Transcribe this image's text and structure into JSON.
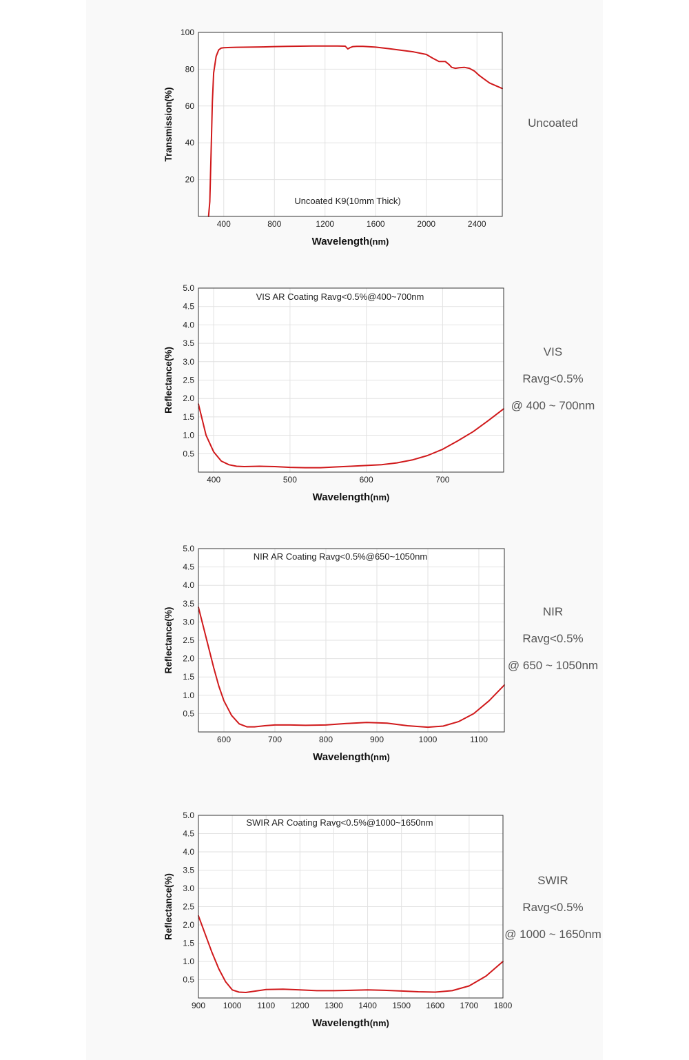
{
  "chart_data": [
    {
      "type": "line",
      "title": "Uncoated K9(10mm Thick)",
      "xlabel": "Wavelength",
      "xlabel_unit": "(nm)",
      "ylabel": "Transmission(%)",
      "xlim": [
        200,
        2600
      ],
      "ylim": [
        0,
        100
      ],
      "xticks": [
        400,
        800,
        1200,
        1600,
        2000,
        2400
      ],
      "yticks": [
        20,
        40,
        60,
        80,
        100
      ],
      "grid": true,
      "line_color": "#d0191b",
      "side_labels": [
        "Uncoated"
      ],
      "series": [
        {
          "x": [
            280,
            290,
            300,
            310,
            320,
            340,
            360,
            380,
            400,
            450,
            500,
            600,
            700,
            800,
            900,
            1000,
            1100,
            1200,
            1300,
            1360,
            1380,
            1400,
            1420,
            1450,
            1500,
            1600,
            1700,
            1800,
            1900,
            2000,
            2050,
            2100,
            2150,
            2180,
            2200,
            2230,
            2260,
            2300,
            2340,
            2380,
            2420,
            2450,
            2500,
            2550,
            2600
          ],
          "y": [
            0,
            8,
            35,
            62,
            78,
            87,
            90.5,
            91.5,
            91.7,
            91.8,
            91.9,
            92.0,
            92.1,
            92.3,
            92.4,
            92.5,
            92.6,
            92.6,
            92.6,
            92.5,
            91.0,
            91.8,
            92.3,
            92.4,
            92.4,
            92.0,
            91.2,
            90.3,
            89.4,
            88.0,
            86.0,
            84.2,
            84.2,
            82.5,
            81.0,
            80.5,
            80.8,
            81.0,
            80.5,
            79.0,
            76.5,
            75.0,
            72.5,
            71.0,
            69.5
          ]
        }
      ]
    },
    {
      "type": "line",
      "title": "VIS AR Coating Ravg<0.5%@400~700nm",
      "xlabel": "Wavelength",
      "xlabel_unit": "(nm)",
      "ylabel": "Reflectance(%)",
      "xlim": [
        380,
        780
      ],
      "ylim": [
        0,
        5
      ],
      "xticks": [
        400,
        500,
        600,
        700
      ],
      "yticks": [
        0.5,
        1.0,
        1.5,
        2.0,
        2.5,
        3.0,
        3.5,
        4.0,
        4.5,
        5.0
      ],
      "grid": true,
      "line_color": "#d0191b",
      "side_labels": [
        "VIS",
        "Ravg<0.5%",
        "@ 400 ~ 700nm"
      ],
      "series": [
        {
          "x": [
            380,
            390,
            400,
            410,
            420,
            430,
            440,
            460,
            480,
            500,
            520,
            540,
            560,
            580,
            600,
            620,
            640,
            660,
            680,
            700,
            720,
            740,
            760,
            780
          ],
          "y": [
            1.85,
            1.0,
            0.55,
            0.3,
            0.2,
            0.16,
            0.15,
            0.16,
            0.15,
            0.13,
            0.12,
            0.12,
            0.14,
            0.16,
            0.18,
            0.2,
            0.25,
            0.33,
            0.45,
            0.62,
            0.85,
            1.1,
            1.4,
            1.72
          ]
        }
      ]
    },
    {
      "type": "line",
      "title": "NIR AR Coating Ravg<0.5%@650~1050nm",
      "xlabel": "Wavelength",
      "xlabel_unit": "(nm)",
      "ylabel": "Reflectance(%)",
      "xlim": [
        550,
        1150
      ],
      "ylim": [
        0,
        5
      ],
      "xticks": [
        600,
        700,
        800,
        900,
        1000,
        1100
      ],
      "yticks": [
        0.5,
        1.0,
        1.5,
        2.0,
        2.5,
        3.0,
        3.5,
        4.0,
        4.5,
        5.0
      ],
      "grid": true,
      "line_color": "#d0191b",
      "side_labels": [
        "NIR",
        "Ravg<0.5%",
        "@ 650 ~ 1050nm"
      ],
      "series": [
        {
          "x": [
            550,
            560,
            570,
            580,
            590,
            600,
            615,
            630,
            645,
            660,
            680,
            700,
            730,
            760,
            800,
            840,
            880,
            920,
            960,
            1000,
            1030,
            1060,
            1090,
            1120,
            1150
          ],
          "y": [
            3.4,
            2.85,
            2.3,
            1.75,
            1.25,
            0.85,
            0.45,
            0.22,
            0.14,
            0.14,
            0.17,
            0.19,
            0.19,
            0.18,
            0.19,
            0.23,
            0.26,
            0.24,
            0.17,
            0.13,
            0.16,
            0.28,
            0.5,
            0.85,
            1.28
          ]
        }
      ]
    },
    {
      "type": "line",
      "title": "SWIR AR Coating Ravg<0.5%@1000~1650nm",
      "xlabel": "Wavelength",
      "xlabel_unit": "(nm)",
      "ylabel": "Reflectance(%)",
      "xlim": [
        900,
        1800
      ],
      "ylim": [
        0,
        5
      ],
      "xticks": [
        900,
        1000,
        1100,
        1200,
        1300,
        1400,
        1500,
        1600,
        1700,
        1800
      ],
      "yticks": [
        0.5,
        1.0,
        1.5,
        2.0,
        2.5,
        3.0,
        3.5,
        4.0,
        4.5,
        5.0
      ],
      "grid": true,
      "line_color": "#d0191b",
      "side_labels": [
        "SWIR",
        "Ravg<0.5%",
        "@ 1000 ~ 1650nm"
      ],
      "series": [
        {
          "x": [
            900,
            920,
            940,
            960,
            980,
            1000,
            1020,
            1040,
            1070,
            1100,
            1150,
            1200,
            1250,
            1300,
            1350,
            1400,
            1450,
            1500,
            1550,
            1600,
            1650,
            1700,
            1750,
            1800
          ],
          "y": [
            2.25,
            1.75,
            1.25,
            0.8,
            0.45,
            0.22,
            0.16,
            0.15,
            0.19,
            0.23,
            0.24,
            0.22,
            0.2,
            0.2,
            0.21,
            0.22,
            0.21,
            0.19,
            0.17,
            0.16,
            0.2,
            0.33,
            0.6,
            1.0
          ]
        }
      ]
    }
  ]
}
